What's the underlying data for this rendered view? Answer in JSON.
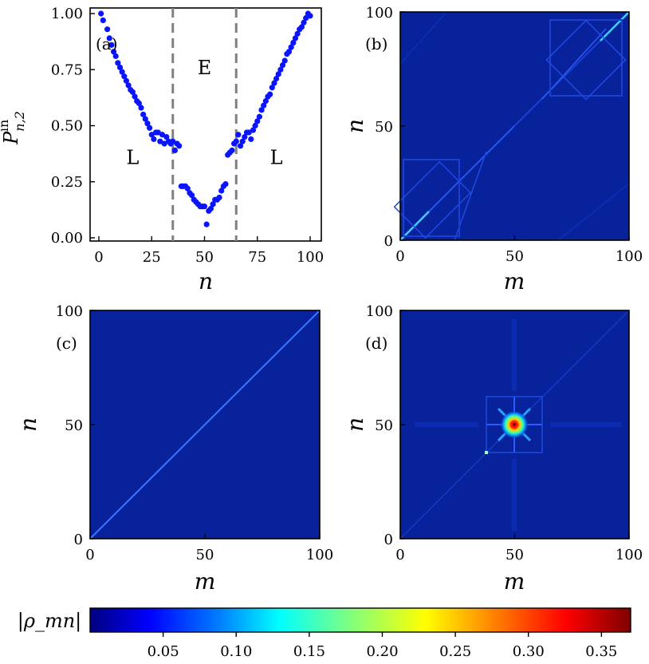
{
  "chart_data": [
    {
      "type": "scatter",
      "panel": "(a)",
      "xlabel": "n",
      "ylabel": "P^in_{n,2}",
      "xlim": [
        0,
        100
      ],
      "ylim": [
        0,
        1
      ],
      "xticks": [
        "0",
        "25",
        "50",
        "75",
        "100"
      ],
      "yticks": [
        "0.00",
        "0.25",
        "0.50",
        "0.75",
        "1.00"
      ],
      "vlines": [
        35,
        65
      ],
      "regions": [
        {
          "label": "L",
          "x": 16,
          "y": 0.33
        },
        {
          "label": "E",
          "x": 50,
          "y": 0.73
        },
        {
          "label": "L",
          "x": 84,
          "y": 0.33
        }
      ],
      "x": [
        1,
        2,
        4,
        5,
        6,
        7,
        8,
        9,
        10,
        11,
        12,
        13,
        14,
        15,
        16,
        17,
        18,
        19,
        20,
        21,
        22,
        23,
        24,
        25,
        26,
        27,
        28,
        29,
        30,
        31,
        32,
        33,
        34,
        35,
        36,
        37,
        38,
        39,
        40,
        41,
        42,
        43,
        44,
        45,
        46,
        47,
        48,
        49,
        50,
        51,
        52,
        53,
        54,
        55,
        56,
        57,
        58,
        59,
        60,
        61,
        62,
        63,
        64,
        65,
        66,
        67,
        68,
        69,
        70,
        71,
        72,
        73,
        74,
        75,
        76,
        77,
        78,
        79,
        80,
        81,
        82,
        83,
        84,
        85,
        86,
        87,
        88,
        89,
        90,
        91,
        92,
        93,
        94,
        95,
        96,
        97,
        98,
        99,
        100
      ],
      "y": [
        1.0,
        0.97,
        0.93,
        0.89,
        0.86,
        0.83,
        0.81,
        0.78,
        0.76,
        0.74,
        0.72,
        0.7,
        0.68,
        0.66,
        0.65,
        0.63,
        0.61,
        0.6,
        0.58,
        0.55,
        0.53,
        0.51,
        0.49,
        0.46,
        0.44,
        0.47,
        0.47,
        0.43,
        0.46,
        0.42,
        0.45,
        0.43,
        0.42,
        0.43,
        0.39,
        0.42,
        0.41,
        0.23,
        0.23,
        0.23,
        0.22,
        0.2,
        0.19,
        0.17,
        0.16,
        0.15,
        0.14,
        0.14,
        0.14,
        0.06,
        0.12,
        0.13,
        0.15,
        0.17,
        0.17,
        0.18,
        0.21,
        0.23,
        0.24,
        0.37,
        0.38,
        0.39,
        0.42,
        0.43,
        0.46,
        0.41,
        0.43,
        0.45,
        0.47,
        0.47,
        0.44,
        0.48,
        0.5,
        0.52,
        0.54,
        0.57,
        0.59,
        0.61,
        0.63,
        0.64,
        0.67,
        0.69,
        0.71,
        0.73,
        0.75,
        0.77,
        0.79,
        0.82,
        0.83,
        0.85,
        0.87,
        0.89,
        0.91,
        0.93,
        0.94,
        0.96,
        0.98,
        1.0,
        0.99
      ]
    },
    {
      "type": "heatmap",
      "panel": "(b)",
      "xlabel": "m",
      "ylabel": "n",
      "xlim": [
        0,
        100
      ],
      "ylim": [
        0,
        100
      ],
      "ticks": [
        "0",
        "50",
        "100"
      ]
    },
    {
      "type": "heatmap",
      "panel": "(c)",
      "xlabel": "m",
      "ylabel": "n",
      "xlim": [
        0,
        100
      ],
      "ylim": [
        0,
        100
      ],
      "ticks": [
        "0",
        "50",
        "100"
      ]
    },
    {
      "type": "heatmap",
      "panel": "(d)",
      "xlabel": "m",
      "ylabel": "n",
      "xlim": [
        0,
        100
      ],
      "ylim": [
        0,
        100
      ],
      "ticks": [
        "0",
        "50",
        "100"
      ]
    }
  ],
  "colorbar": {
    "label": "|ρ_mn|",
    "min": 0,
    "max": 0.37,
    "ticks": [
      "0.05",
      "0.10",
      "0.15",
      "0.20",
      "0.25",
      "0.30",
      "0.35"
    ],
    "tick_values": [
      0.05,
      0.1,
      0.15,
      0.2,
      0.25,
      0.3,
      0.35
    ],
    "colormap": [
      "#00007f",
      "#0000ff",
      "#007fff",
      "#00ffff",
      "#7fff7f",
      "#ffff00",
      "#ff7f00",
      "#ff0000",
      "#7f0000"
    ]
  },
  "colors": {
    "marker": "#0a14ff",
    "vline": "#808080",
    "heatmap_bg": "#07229b",
    "frame": "#000000"
  }
}
